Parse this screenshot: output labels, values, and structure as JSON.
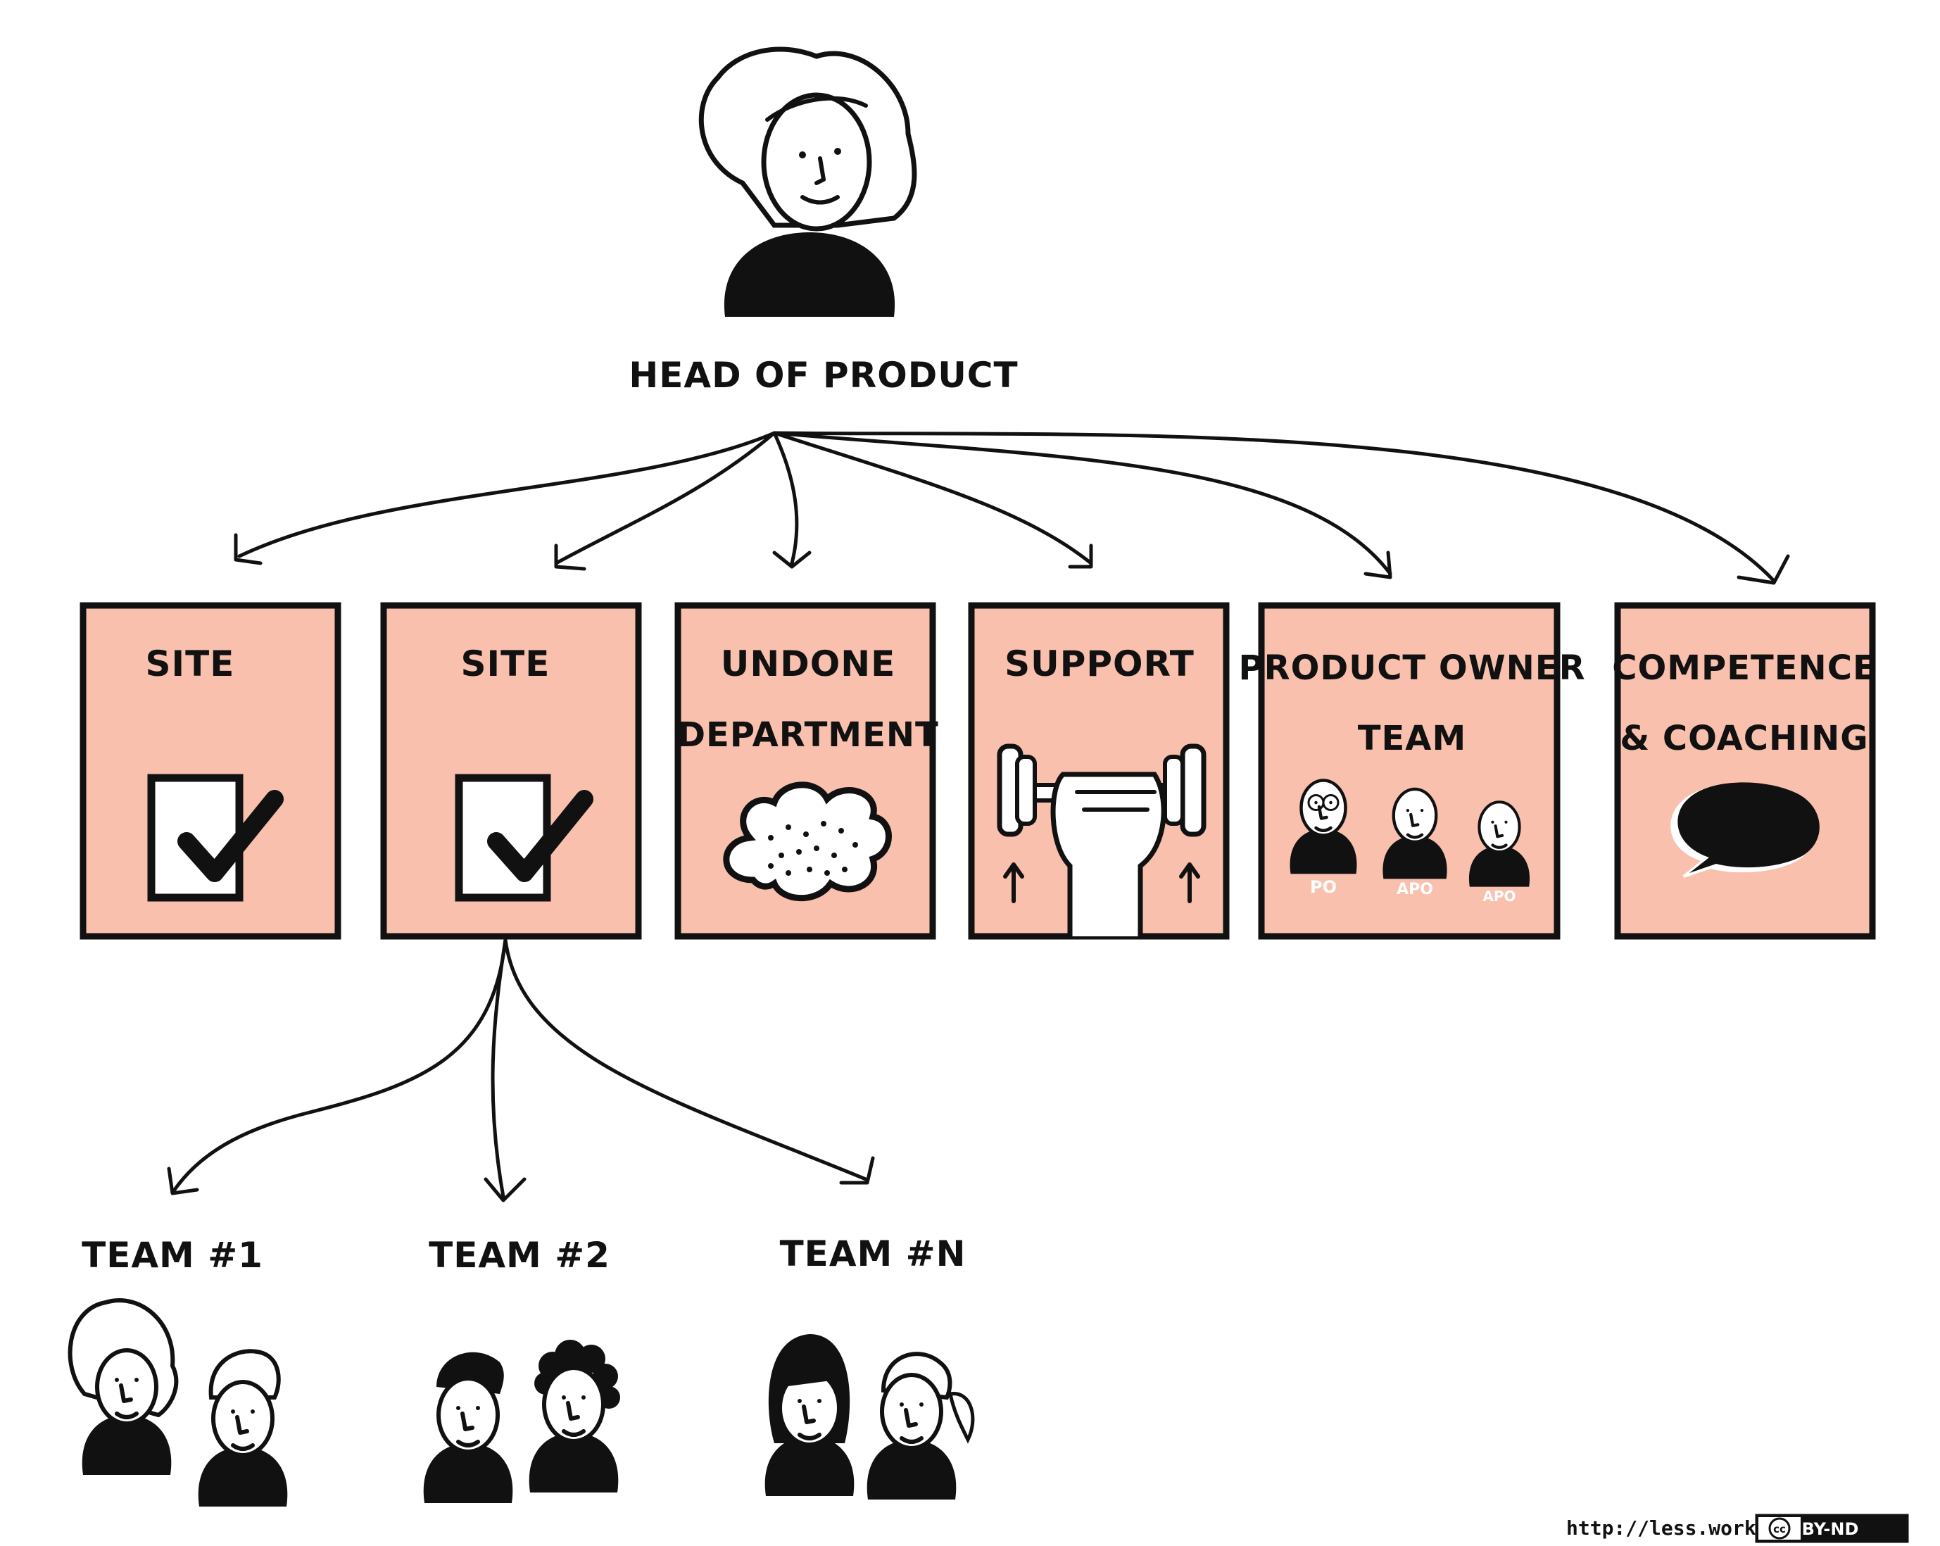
{
  "head": {
    "label": "HEAD OF PRODUCT"
  },
  "boxes": [
    {
      "line1": "SITE",
      "line2": "",
      "icon": "checkbox-icon"
    },
    {
      "line1": "SITE",
      "line2": "",
      "icon": "checkbox-icon"
    },
    {
      "line1": "UNDONE",
      "line2": "DEPARTMENT",
      "icon": "cloud-icon"
    },
    {
      "line1": "SUPPORT",
      "line2": "",
      "icon": "dumbbell-icon"
    },
    {
      "line1": "PRODUCT OWNER",
      "line2": "TEAM",
      "icon": "people-icon",
      "badges": [
        "PO",
        "APO",
        "APO"
      ]
    },
    {
      "line1": "COMPETENCE",
      "line2": "& COACHING",
      "icon": "speech-bubble-icon"
    }
  ],
  "teams": [
    {
      "label": "TEAM #1"
    },
    {
      "label": "TEAM #2"
    },
    {
      "label": "TEAM #N"
    }
  ],
  "footer": {
    "url": "http://less.works",
    "license_cc": "cc",
    "license": "BY-ND"
  },
  "colors": {
    "box_fill": "#f8c0ad",
    "ink": "#111111"
  }
}
